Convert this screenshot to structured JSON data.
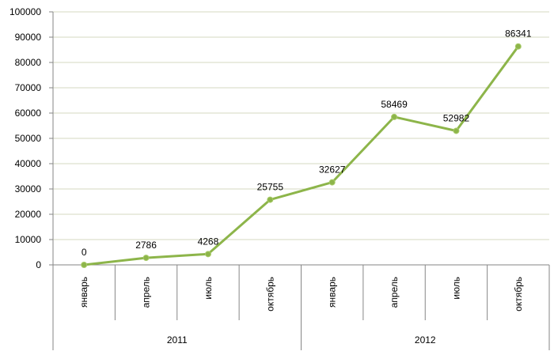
{
  "chart_data": {
    "type": "line",
    "title": "",
    "xlabel": "",
    "ylabel": "",
    "ylim": [
      0,
      100000
    ],
    "ytick_step": 10000,
    "grid": true,
    "categories": [
      "январь",
      "апрель",
      "июль",
      "октябрь",
      "январь",
      "апрель",
      "июль",
      "октябрь"
    ],
    "groups": [
      {
        "label": "2011",
        "count": 4
      },
      {
        "label": "2012",
        "count": 4
      }
    ],
    "series": [
      {
        "values": [
          0,
          2786,
          4268,
          25755,
          32627,
          58469,
          52982,
          86341
        ],
        "color": "#8db54a"
      }
    ],
    "data_labels": true,
    "colors": {
      "grid": "#d4d9c0",
      "axis": "#868686",
      "line": "#8db54a",
      "marker": "#8db54a"
    }
  }
}
